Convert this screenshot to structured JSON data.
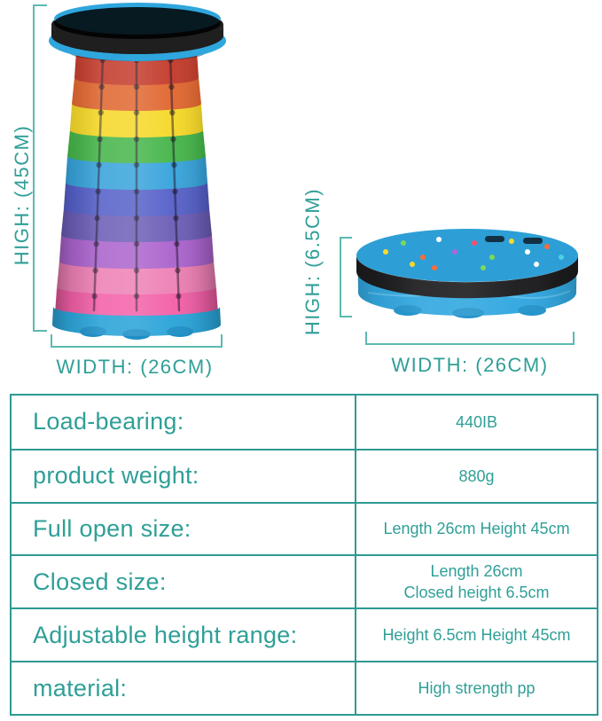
{
  "annotations": {
    "line_color": "#5cbab0",
    "text_color": "#2f9f97",
    "open_high_label": "HIGH:  (45CM)",
    "open_width_label": "WIDTH:  (26CM)",
    "closed_high_label": "HIGH:  (6.5CM)",
    "closed_width_label": "WIDTH:  (26CM)"
  },
  "stool_open": {
    "description": "expanded rainbow telescopic stool",
    "cap_top_color": "#2fa6dd",
    "cap_pad_color": "#1f1f1f",
    "cap_lip_color": "#2fa6dd",
    "base_color": "#2ba4d8",
    "foot_color": "#1f8fc6",
    "layers": [
      "#c23a2a",
      "#e0662f",
      "#f6d827",
      "#45b549",
      "#37a3db",
      "#5560c8",
      "#6c5db6",
      "#ab63cd",
      "#ee80b5",
      "#f360a8"
    ]
  },
  "stool_closed": {
    "description": "collapsed telescopic stool",
    "body_color": "#33a8e0",
    "top_color": "#2d9fd6",
    "band_color": "#1d1d1f",
    "foot_color": "#2596cc",
    "mold_line_color": "#66c4ee",
    "pattern_colors": [
      "#ffd92b",
      "#7ed957",
      "#ff6b35",
      "#ffffff",
      "#b065d9",
      "#ff4d6d",
      "#7ed957",
      "#ffd92b",
      "#ffffff",
      "#ff6b35",
      "#4dd0e1",
      "#ffd92b",
      "#7ed957",
      "#ffffff",
      "#ff6b35"
    ]
  },
  "spec_table": {
    "border_color": "#2d9a93",
    "rows": [
      {
        "label": "Load-bearing:",
        "value": "440IB"
      },
      {
        "label": "product weight:",
        "value": "880g"
      },
      {
        "label": "Full open size:",
        "value": "Length 26cm Height 45cm"
      },
      {
        "label": "Closed size:",
        "value": "Length 26cm\nClosed height 6.5cm"
      },
      {
        "label": "Adjustable height range:",
        "value": "Height 6.5cm Height 45cm"
      },
      {
        "label": "material:",
        "value": "High strength pp"
      }
    ]
  }
}
